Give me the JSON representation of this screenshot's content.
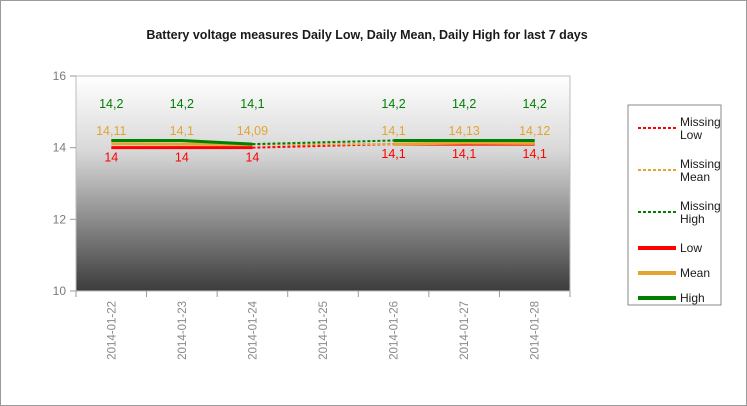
{
  "chart_data": {
    "type": "line",
    "title": "Battery voltage measures Daily Low, Daily Mean, Daily High for last 7 days",
    "xlabel": "",
    "ylabel": "",
    "ylim": [
      10,
      16
    ],
    "yticks": [
      10,
      12,
      14,
      16
    ],
    "categories": [
      "2014-01-22",
      "2014-01-23",
      "2014-01-24",
      "2014-01-25",
      "2014-01-26",
      "2014-01-27",
      "2014-01-28"
    ],
    "series": [
      {
        "name": "Low",
        "color": "#ff0000",
        "values": [
          14,
          14,
          14,
          null,
          14.1,
          14.1,
          14.1
        ],
        "labels": [
          "14",
          "14",
          "14",
          "",
          "14,1",
          "14,1",
          "14,1"
        ]
      },
      {
        "name": "Mean",
        "color": "#e3a431",
        "values": [
          14.11,
          14.1,
          14.09,
          null,
          14.1,
          14.13,
          14.12
        ],
        "labels": [
          "14,11",
          "14,1",
          "14,09",
          "",
          "14,1",
          "14,13",
          "14,12"
        ]
      },
      {
        "name": "High",
        "color": "#008000",
        "values": [
          14.2,
          14.2,
          14.1,
          null,
          14.2,
          14.2,
          14.2
        ],
        "labels": [
          "14,2",
          "14,2",
          "14,1",
          "",
          "14,2",
          "14,2",
          "14,2"
        ]
      }
    ],
    "legend": {
      "position": "right",
      "entries": [
        {
          "label_lines": [
            "Missing",
            "Low"
          ],
          "style": "dotted",
          "color": "#ff0000"
        },
        {
          "label_lines": [
            "Missing",
            "Mean"
          ],
          "style": "dotted",
          "color": "#e3a431"
        },
        {
          "label_lines": [
            "Missing",
            "High"
          ],
          "style": "dotted",
          "color": "#008000"
        },
        {
          "label_lines": [
            "Low"
          ],
          "style": "solid",
          "color": "#ff0000"
        },
        {
          "label_lines": [
            "Mean"
          ],
          "style": "solid",
          "color": "#e3a431"
        },
        {
          "label_lines": [
            "High"
          ],
          "style": "solid",
          "color": "#008000"
        }
      ]
    }
  }
}
